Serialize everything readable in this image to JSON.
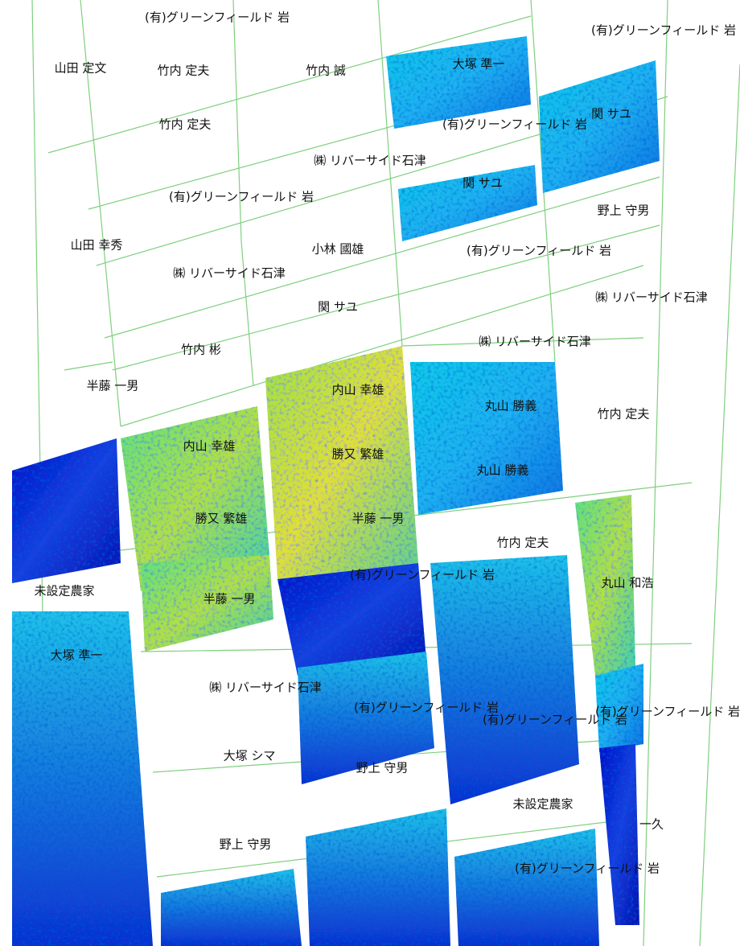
{
  "labels": [
    "(有)グリーンフィールド 岩",
    "山田 定文",
    "竹内 定夫",
    "竹内 誠",
    "大塚 準一",
    "(有)グリーンフィールド 岩",
    "竹内 定夫",
    "(有)グリーンフィールド 岩",
    "関 サユ",
    "㈱ リバーサイド石津",
    "関 サユ",
    "(有)グリーンフィールド 岩",
    "野上 守男",
    "山田 幸秀",
    "小林 國雄",
    "(有)グリーンフィールド 岩",
    "㈱ リバーサイド石津",
    "関 サユ",
    "㈱ リバーサイド石津",
    "㈱ リバーサイド石津",
    "竹内 彬",
    "半藤 一男",
    "内山 幸雄",
    "丸山 勝義",
    "竹内 定夫",
    "内山 幸雄",
    "勝又 繁雄",
    "丸山 勝義",
    "勝又 繁雄",
    "半藤 一男",
    "竹内 定夫",
    "丸山 和浩",
    "未設定農家",
    "(有)グリーンフィールド 岩",
    "半藤 一男",
    "大塚 準一",
    "㈱ リバーサイド石津",
    "(有)グリーンフィールド 岩",
    "(有)グリーンフィールド 岩",
    "(有)グリーンフィールド 岩",
    "大塚 シマ",
    "野上 守男",
    "未設定農家",
    "一久",
    "野上 守男",
    "(有)グリーンフィールド 岩"
  ]
}
